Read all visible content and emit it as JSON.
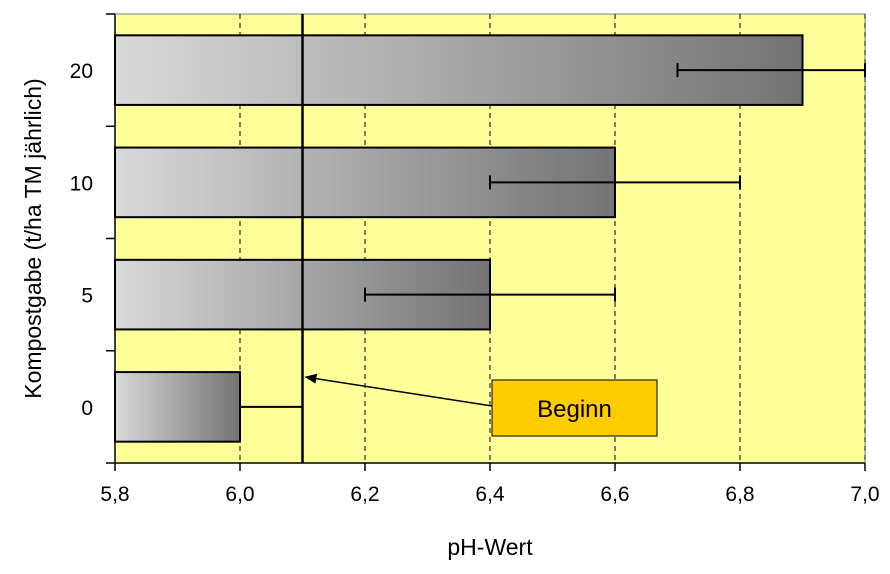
{
  "chart_data": {
    "type": "bar",
    "orientation": "horizontal",
    "categories": [
      "0",
      "5",
      "10",
      "20"
    ],
    "values": [
      6.0,
      6.4,
      6.6,
      6.9
    ],
    "error_low": [
      6.0,
      6.2,
      6.4,
      6.7
    ],
    "error_high": [
      6.1,
      6.6,
      6.8,
      7.0
    ],
    "xlabel": "pH-Wert",
    "ylabel": "Kompostgabe (t/ha TM jährlich)",
    "xlim": [
      5.8,
      7.0
    ],
    "xticks": [
      "5,8",
      "6,0",
      "6,2",
      "6,4",
      "6,6",
      "6,8",
      "7,0"
    ],
    "grid": "vertical dashed",
    "reference_line": 6.1,
    "annotation": {
      "text": "Beginn",
      "points_to": 6.1
    },
    "colors": {
      "plot_background": "#ffff99",
      "bar_light": "#d9d9d9",
      "bar_dark": "#737373",
      "annotation_fill": "#ffcc00"
    }
  }
}
